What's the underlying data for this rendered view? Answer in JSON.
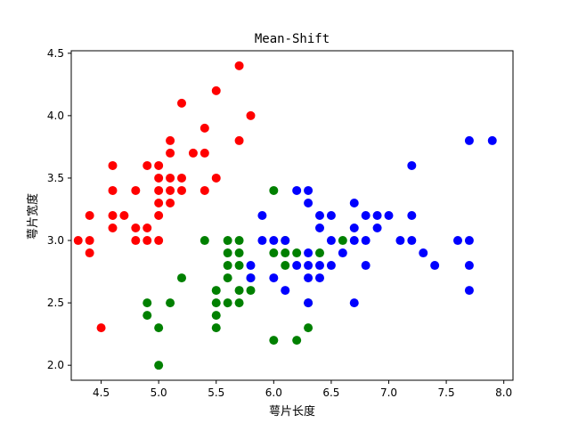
{
  "chart_data": {
    "type": "scatter",
    "title": "Mean-Shift",
    "xlabel": "萼片长度",
    "ylabel": "萼片宽度",
    "xlim": [
      4.24,
      8.08
    ],
    "ylim": [
      1.88,
      4.52
    ],
    "xticks": [
      4.5,
      5.0,
      5.5,
      6.0,
      6.5,
      7.0,
      7.5,
      8.0
    ],
    "xtick_labels": [
      "4.5",
      "5.0",
      "5.5",
      "6.0",
      "6.5",
      "7.0",
      "7.5",
      "8.0"
    ],
    "yticks": [
      2.0,
      2.5,
      3.0,
      3.5,
      4.0,
      4.5
    ],
    "ytick_labels": [
      "2.0",
      "2.5",
      "3.0",
      "3.5",
      "4.0",
      "4.5"
    ],
    "grid": false,
    "series": [
      {
        "color": "#ff0000",
        "points": [
          [
            4.3,
            3.0
          ],
          [
            4.4,
            2.9
          ],
          [
            4.4,
            3.0
          ],
          [
            4.4,
            3.2
          ],
          [
            4.5,
            2.3
          ],
          [
            4.6,
            3.1
          ],
          [
            4.6,
            3.2
          ],
          [
            4.6,
            3.4
          ],
          [
            4.6,
            3.6
          ],
          [
            4.7,
            3.2
          ],
          [
            4.8,
            3.0
          ],
          [
            4.8,
            3.1
          ],
          [
            4.8,
            3.4
          ],
          [
            4.9,
            3.0
          ],
          [
            4.9,
            3.1
          ],
          [
            4.9,
            3.6
          ],
          [
            5.0,
            3.0
          ],
          [
            5.0,
            3.2
          ],
          [
            5.0,
            3.3
          ],
          [
            5.0,
            3.4
          ],
          [
            5.0,
            3.5
          ],
          [
            5.0,
            3.6
          ],
          [
            5.1,
            3.3
          ],
          [
            5.1,
            3.4
          ],
          [
            5.1,
            3.5
          ],
          [
            5.1,
            3.7
          ],
          [
            5.1,
            3.8
          ],
          [
            5.2,
            3.4
          ],
          [
            5.2,
            3.5
          ],
          [
            5.2,
            4.1
          ],
          [
            5.3,
            3.7
          ],
          [
            5.4,
            3.4
          ],
          [
            5.4,
            3.7
          ],
          [
            5.4,
            3.9
          ],
          [
            5.5,
            3.5
          ],
          [
            5.5,
            4.2
          ],
          [
            5.7,
            3.8
          ],
          [
            5.7,
            4.4
          ],
          [
            5.8,
            4.0
          ]
        ]
      },
      {
        "color": "#008000",
        "points": [
          [
            4.9,
            2.4
          ],
          [
            4.9,
            2.5
          ],
          [
            5.0,
            2.0
          ],
          [
            5.0,
            2.3
          ],
          [
            5.1,
            2.5
          ],
          [
            5.2,
            2.7
          ],
          [
            5.4,
            3.0
          ],
          [
            5.5,
            2.3
          ],
          [
            5.5,
            2.4
          ],
          [
            5.5,
            2.5
          ],
          [
            5.5,
            2.6
          ],
          [
            5.6,
            2.5
          ],
          [
            5.6,
            2.7
          ],
          [
            5.6,
            2.8
          ],
          [
            5.6,
            2.9
          ],
          [
            5.6,
            3.0
          ],
          [
            5.7,
            2.5
          ],
          [
            5.7,
            2.6
          ],
          [
            5.7,
            2.8
          ],
          [
            5.7,
            2.9
          ],
          [
            5.7,
            3.0
          ],
          [
            5.8,
            2.6
          ],
          [
            5.8,
            2.7
          ],
          [
            6.0,
            2.2
          ],
          [
            6.0,
            2.9
          ],
          [
            6.0,
            3.4
          ],
          [
            6.1,
            2.8
          ],
          [
            6.1,
            2.9
          ],
          [
            6.1,
            3.0
          ],
          [
            6.2,
            2.2
          ],
          [
            6.2,
            2.9
          ],
          [
            6.3,
            2.3
          ],
          [
            6.3,
            2.5
          ],
          [
            6.4,
            2.9
          ],
          [
            6.6,
            3.0
          ]
        ]
      },
      {
        "color": "#0000ff",
        "points": [
          [
            5.8,
            2.7
          ],
          [
            5.8,
            2.8
          ],
          [
            5.9,
            3.0
          ],
          [
            5.9,
            3.2
          ],
          [
            6.0,
            2.7
          ],
          [
            6.0,
            3.0
          ],
          [
            6.1,
            2.6
          ],
          [
            6.1,
            3.0
          ],
          [
            6.2,
            2.8
          ],
          [
            6.2,
            3.4
          ],
          [
            6.3,
            2.5
          ],
          [
            6.3,
            2.7
          ],
          [
            6.3,
            2.8
          ],
          [
            6.3,
            2.9
          ],
          [
            6.3,
            3.3
          ],
          [
            6.3,
            3.4
          ],
          [
            6.4,
            2.7
          ],
          [
            6.4,
            2.8
          ],
          [
            6.4,
            3.1
          ],
          [
            6.4,
            3.2
          ],
          [
            6.5,
            2.8
          ],
          [
            6.5,
            3.0
          ],
          [
            6.5,
            3.2
          ],
          [
            6.6,
            2.9
          ],
          [
            6.7,
            2.5
          ],
          [
            6.7,
            3.0
          ],
          [
            6.7,
            3.1
          ],
          [
            6.7,
            3.3
          ],
          [
            6.8,
            2.8
          ],
          [
            6.8,
            3.0
          ],
          [
            6.8,
            3.2
          ],
          [
            6.9,
            3.1
          ],
          [
            6.9,
            3.2
          ],
          [
            7.0,
            3.2
          ],
          [
            7.1,
            3.0
          ],
          [
            7.2,
            3.0
          ],
          [
            7.2,
            3.2
          ],
          [
            7.2,
            3.6
          ],
          [
            7.3,
            2.9
          ],
          [
            7.4,
            2.8
          ],
          [
            7.6,
            3.0
          ],
          [
            7.7,
            2.6
          ],
          [
            7.7,
            2.8
          ],
          [
            7.7,
            3.0
          ],
          [
            7.7,
            3.8
          ],
          [
            7.9,
            3.8
          ]
        ]
      }
    ]
  }
}
